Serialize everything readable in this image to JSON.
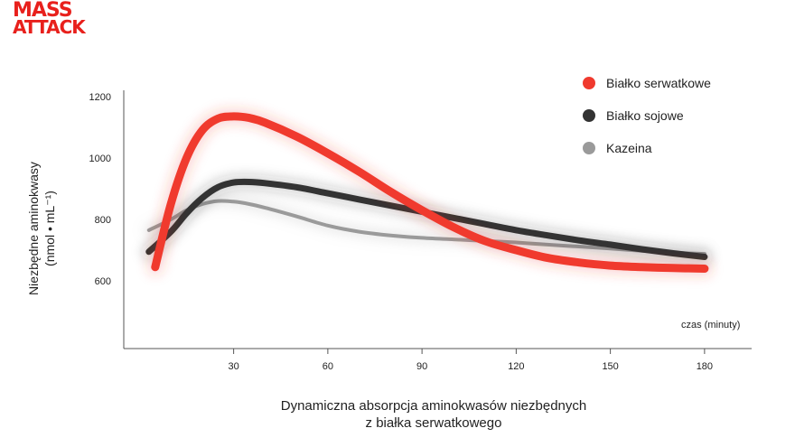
{
  "brand": {
    "line1": "MASS",
    "line2": "ATTACK"
  },
  "chart_data": {
    "type": "line",
    "caption_line1": "Dynamiczna absorpcja aminokwasów niezbędnych",
    "caption_line2": "z białka serwatkowego",
    "ylabel_line1": "Niezbędne aminokwasy",
    "ylabel_line2": "(nmol • mL⁻¹)",
    "xlabel": "czas (minuty)",
    "xlim": [
      -5,
      195
    ],
    "ylim": [
      380,
      1220
    ],
    "xticks": [
      30,
      60,
      90,
      120,
      150,
      180
    ],
    "yticks": [
      600,
      800,
      1000,
      1200
    ],
    "legend_position": "top-right",
    "grid": false,
    "series": [
      {
        "name": "Białko serwatkowe",
        "color": "#f03a2e",
        "x": [
          5,
          10,
          15,
          20,
          25,
          30,
          35,
          40,
          50,
          60,
          70,
          80,
          90,
          100,
          110,
          120,
          130,
          140,
          150,
          160,
          170,
          180
        ],
        "y": [
          645,
          850,
          1000,
          1090,
          1128,
          1135,
          1130,
          1115,
          1070,
          1015,
          955,
          890,
          830,
          775,
          730,
          700,
          675,
          660,
          650,
          645,
          642,
          640
        ]
      },
      {
        "name": "Białko sojowe",
        "color": "#333333",
        "x": [
          3,
          10,
          15,
          20,
          25,
          30,
          35,
          40,
          50,
          60,
          70,
          80,
          90,
          100,
          110,
          120,
          130,
          140,
          150,
          160,
          170,
          180
        ],
        "y": [
          695,
          760,
          820,
          870,
          905,
          920,
          922,
          918,
          905,
          885,
          865,
          845,
          825,
          805,
          785,
          765,
          748,
          732,
          718,
          703,
          690,
          678
        ]
      },
      {
        "name": "Kazeina",
        "color": "#9a9a9a",
        "x": [
          3,
          10,
          15,
          20,
          25,
          30,
          35,
          40,
          50,
          60,
          70,
          80,
          90,
          100,
          110,
          120,
          130,
          140,
          150,
          160,
          170,
          180
        ],
        "y": [
          765,
          800,
          830,
          850,
          860,
          858,
          850,
          838,
          810,
          780,
          760,
          748,
          740,
          735,
          730,
          725,
          718,
          712,
          705,
          698,
          692,
          688
        ]
      }
    ]
  }
}
